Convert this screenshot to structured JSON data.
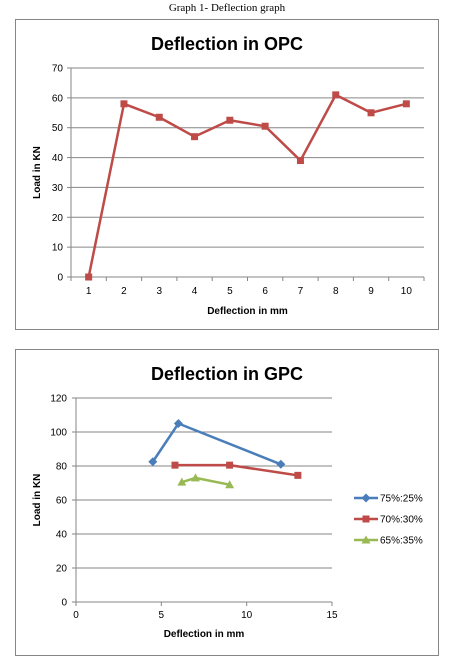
{
  "caption": "Graph 1- Deflection graph",
  "chart_data": [
    {
      "type": "line",
      "title": "Deflection in OPC",
      "xlabel": "Deflection in mm",
      "ylabel": "Load in KN",
      "categories": [
        "1",
        "2",
        "3",
        "4",
        "5",
        "6",
        "7",
        "8",
        "9",
        "10"
      ],
      "ylim": [
        0,
        70
      ],
      "yticks": [
        0,
        10,
        20,
        30,
        40,
        50,
        60,
        70
      ],
      "grid": true,
      "series": [
        {
          "values": [
            0,
            58,
            53.5,
            47,
            52.5,
            50.5,
            39,
            61,
            55,
            58
          ],
          "color": "#be4b48",
          "marker": "square"
        }
      ]
    },
    {
      "type": "scatter",
      "title": "Deflection in GPC",
      "xlabel": "Deflection in mm",
      "ylabel": "Load in KN",
      "xlim": [
        0,
        15
      ],
      "xticks": [
        0,
        5,
        10,
        15
      ],
      "ylim": [
        0,
        120
      ],
      "yticks": [
        0,
        20,
        40,
        60,
        80,
        100,
        120
      ],
      "grid": true,
      "legend_position": "right",
      "series": [
        {
          "name": "75%:25%",
          "color": "#4a7ebb",
          "marker": "diamond",
          "points": [
            [
              4.5,
              82.5
            ],
            [
              6,
              105
            ],
            [
              12,
              81
            ]
          ]
        },
        {
          "name": "70%:30%",
          "color": "#be4b48",
          "marker": "square",
          "points": [
            [
              5.8,
              80.5
            ],
            [
              9,
              80.5
            ],
            [
              13,
              74.5
            ]
          ]
        },
        {
          "name": "65%:35%",
          "color": "#98b954",
          "marker": "triangle",
          "points": [
            [
              6.2,
              70.5
            ],
            [
              7,
              73
            ],
            [
              9,
              69
            ]
          ]
        }
      ]
    }
  ]
}
